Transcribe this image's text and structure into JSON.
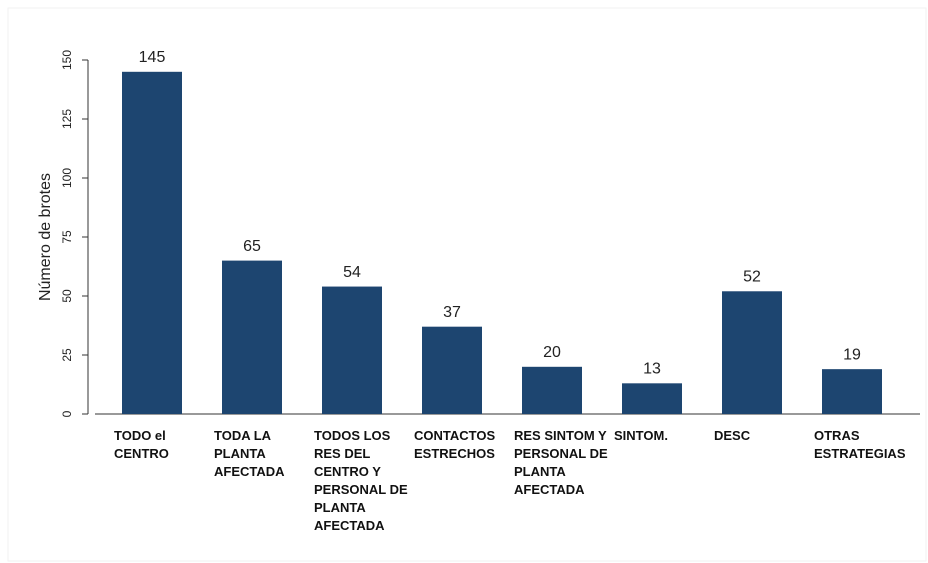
{
  "chart_data": {
    "type": "bar",
    "y_label": "Número de brotes",
    "categories": [
      "TODO el CENTRO",
      "TODA LA PLANTA AFECTADA",
      "TODOS LOS RES DEL CENTRO Y PERSONAL DE PLANTA AFECTADA",
      "CONTACTOS ESTRECHOS",
      "RES SINTOM Y PERSONAL DE PLANTA AFECTADA",
      "SINTOM.",
      "DESC",
      "OTRAS ESTRATEGIAS"
    ],
    "values": [
      145,
      65,
      54,
      37,
      20,
      13,
      52,
      19
    ],
    "color": "#1d4570",
    "ylim": [
      0,
      150
    ],
    "yticks": [
      0,
      25,
      50,
      75,
      100,
      125,
      150
    ],
    "grid": false
  }
}
